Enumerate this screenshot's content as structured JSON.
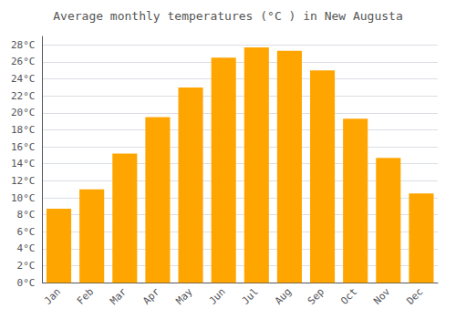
{
  "chart_data": {
    "type": "bar",
    "title": "Average monthly temperatures (°C ) in New Augusta",
    "categories": [
      "Jan",
      "Feb",
      "Mar",
      "Apr",
      "May",
      "Jun",
      "Jul",
      "Aug",
      "Sep",
      "Oct",
      "Nov",
      "Dec"
    ],
    "values": [
      8.7,
      11.0,
      15.2,
      19.5,
      23.0,
      26.5,
      27.7,
      27.3,
      25.0,
      19.3,
      14.7,
      10.5
    ],
    "color": "#FFA500",
    "ylim": [
      0,
      29
    ],
    "yticks": [
      {
        "value": 0,
        "label": "0°C"
      },
      {
        "value": 2,
        "label": "2°C"
      },
      {
        "value": 4,
        "label": "4°C"
      },
      {
        "value": 6,
        "label": "6°C"
      },
      {
        "value": 8,
        "label": "8°C"
      },
      {
        "value": 10,
        "label": "10°C"
      },
      {
        "value": 12,
        "label": "12°C"
      },
      {
        "value": 14,
        "label": "14°C"
      },
      {
        "value": 16,
        "label": "16°C"
      },
      {
        "value": 18,
        "label": "18°C"
      },
      {
        "value": 20,
        "label": "20°C"
      },
      {
        "value": 22,
        "label": "22°C"
      },
      {
        "value": 24,
        "label": "24°C"
      },
      {
        "value": 26,
        "label": "26°C"
      },
      {
        "value": 28,
        "label": "28°C"
      }
    ],
    "grid": true
  }
}
